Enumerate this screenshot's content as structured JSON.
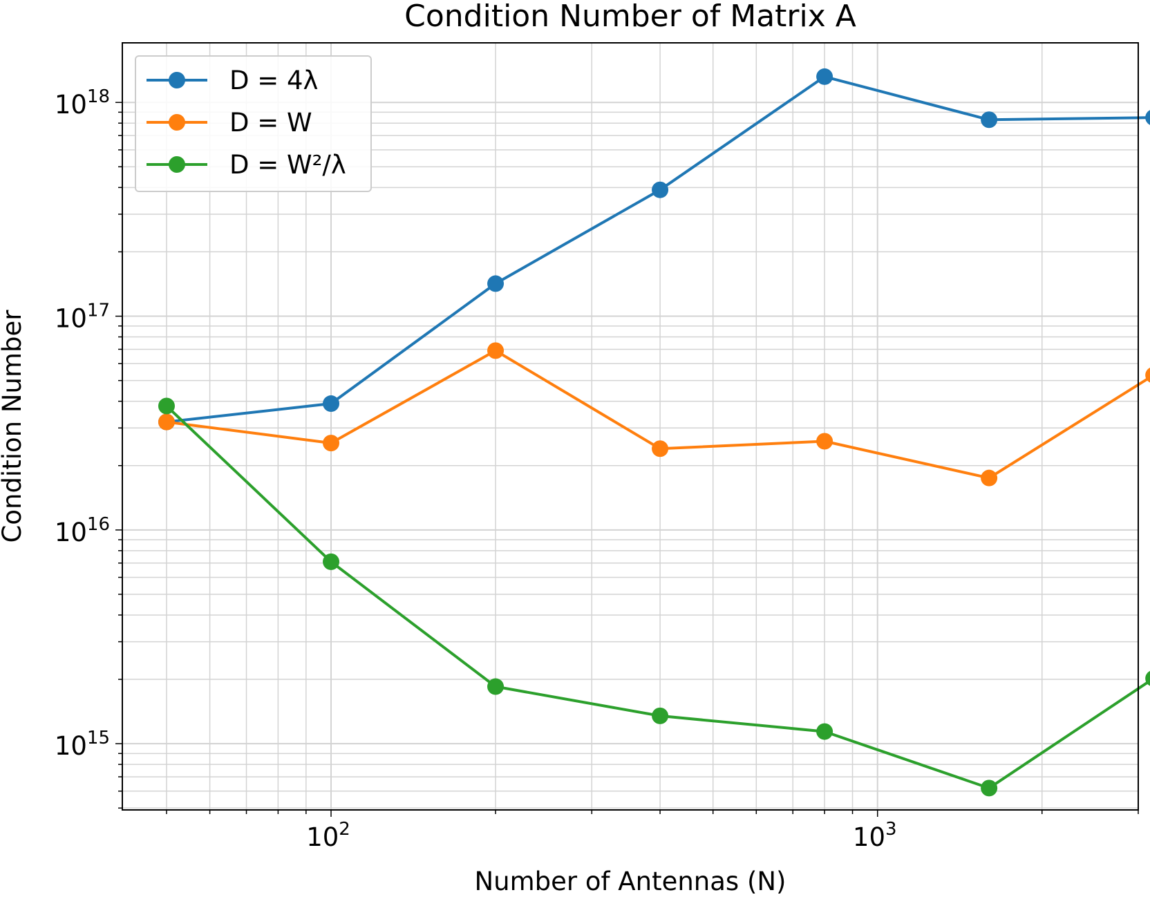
{
  "chart_data": {
    "type": "line",
    "title": "Condition Number of Matrix A",
    "xlabel": "Number of Antennas (N)",
    "ylabel": "Condition Number",
    "x_scale": "log",
    "y_scale": "log",
    "xlim": [
      41.5,
      3000
    ],
    "ylim": [
      490000000000000.0,
      1.9e+18
    ],
    "grid": true,
    "grid_minor": true,
    "legend_position": "top-left",
    "x_ticks": [
      {
        "value": 100,
        "base": "10",
        "exp": "2"
      },
      {
        "value": 1000,
        "base": "10",
        "exp": "3"
      }
    ],
    "y_ticks": [
      {
        "value": 1000000000000000.0,
        "base": "10",
        "exp": "15"
      },
      {
        "value": 1e+16,
        "base": "10",
        "exp": "16"
      },
      {
        "value": 1e+17,
        "base": "10",
        "exp": "17"
      },
      {
        "value": 1e+18,
        "base": "10",
        "exp": "18"
      }
    ],
    "x": [
      50,
      100,
      200,
      400,
      800,
      1600,
      3200
    ],
    "series": [
      {
        "name": "D = 4λ",
        "color": "#1f77b4",
        "values": [
          3.2e+16,
          3.9e+16,
          1.42e+17,
          3.9e+17,
          1.32e+18,
          8.3e+17,
          8.5e+17
        ]
      },
      {
        "name": "D = W",
        "color": "#ff7f0e",
        "values": [
          3.2e+16,
          2.55e+16,
          6.9e+16,
          2.4e+16,
          2.6e+16,
          1.75e+16,
          5.3e+16
        ]
      },
      {
        "name": "D = W²/λ",
        "color": "#2ca02c",
        "values": [
          3.8e+16,
          7100000000000000.0,
          1850000000000000.0,
          1350000000000000.0,
          1140000000000000.0,
          620000000000000.0,
          2020000000000000.0
        ]
      }
    ]
  }
}
